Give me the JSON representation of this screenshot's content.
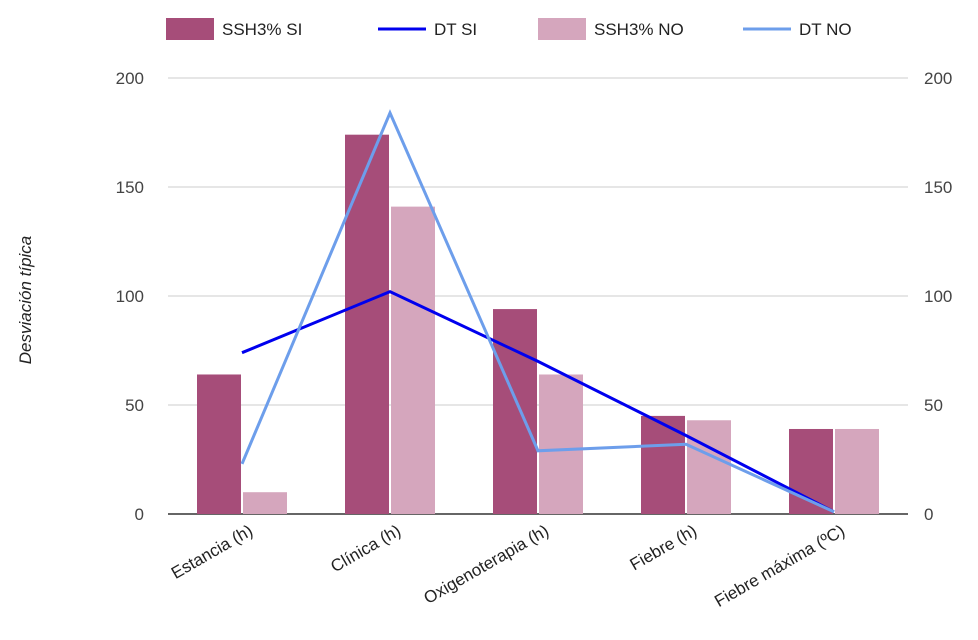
{
  "chart_data": {
    "type": "bar",
    "title": "",
    "xlabel": "",
    "ylabel": "Desviación típica",
    "ylim": [
      0,
      200
    ],
    "y_ticks": [
      0,
      50,
      100,
      150,
      200
    ],
    "grid": true,
    "legend_position": "top",
    "categories": [
      "Estancia (h)",
      "Clínica (h)",
      "Oxigenoterapia (h)",
      "Fiebre (h)",
      "Fiebre máxima (ºC)"
    ],
    "series": [
      {
        "name": "SSH3% SI",
        "type": "bar",
        "color": "#a64d79",
        "values": [
          64,
          174,
          94,
          45,
          39
        ]
      },
      {
        "name": "DT SI",
        "type": "line",
        "color": "#0000ee",
        "values": [
          74,
          102,
          70,
          36,
          1
        ]
      },
      {
        "name": "SSH3% NO",
        "type": "bar",
        "color": "#d5a6bd",
        "values": [
          10,
          141,
          64,
          43,
          39
        ]
      },
      {
        "name": "DT NO",
        "type": "line",
        "color": "#6d9eeb",
        "values": [
          23,
          184,
          29,
          32,
          1
        ]
      }
    ]
  }
}
